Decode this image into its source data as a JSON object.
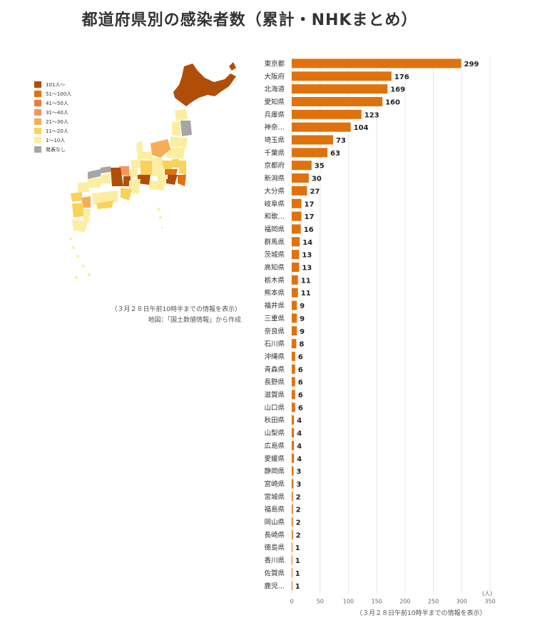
{
  "title": "都道府県別の感染者数（累計・NHKまとめ）",
  "legend": [
    {
      "label": "101人～",
      "color": "#b04e07"
    },
    {
      "label": "51～100人",
      "color": "#e0720e"
    },
    {
      "label": "41～50人",
      "color": "#f0793a"
    },
    {
      "label": "31～40人",
      "color": "#f4955f"
    },
    {
      "label": "21～30人",
      "color": "#f6ad55"
    },
    {
      "label": "11～20人",
      "color": "#f9d25a"
    },
    {
      "label": "1～10人",
      "color": "#fbeea0"
    },
    {
      "label": "発表なし",
      "color": "#a6a6a6"
    }
  ],
  "map_note_1": "（３月２８日午前10時半までの情報を表示）",
  "map_note_2": "地図：「国土数値情報」から作成",
  "bottom_note": "（３月２８日午前10時半までの情報を表示）",
  "chart_data": {
    "type": "bar",
    "orientation": "horizontal",
    "categories": [
      "東京都",
      "大阪府",
      "北海道",
      "愛知県",
      "兵庫県",
      "神奈…",
      "埼玉県",
      "千葉県",
      "京都府",
      "新潟県",
      "大分県",
      "岐阜県",
      "和歌…",
      "福岡県",
      "群馬県",
      "茨城県",
      "高知県",
      "栃木県",
      "熊本県",
      "福井県",
      "三重県",
      "奈良県",
      "石川県",
      "沖縄県",
      "青森県",
      "長野県",
      "滋賀県",
      "山口県",
      "秋田県",
      "山梨県",
      "広島県",
      "愛媛県",
      "静岡県",
      "宮崎県",
      "宮城県",
      "福島県",
      "岡山県",
      "長崎県",
      "徳島県",
      "香川県",
      "佐賀県",
      "鹿児…"
    ],
    "values": [
      299,
      176,
      169,
      160,
      123,
      104,
      73,
      63,
      35,
      30,
      27,
      17,
      17,
      16,
      14,
      13,
      13,
      11,
      11,
      9,
      9,
      9,
      8,
      6,
      6,
      6,
      6,
      6,
      4,
      4,
      4,
      4,
      3,
      3,
      2,
      2,
      2,
      2,
      1,
      1,
      1,
      1
    ],
    "xlim": [
      0,
      350
    ],
    "xticks": [
      0,
      50,
      100,
      150,
      200,
      250,
      300,
      350
    ],
    "unit_label": "(人)",
    "grid": true,
    "bar_color": "#e0720e"
  }
}
